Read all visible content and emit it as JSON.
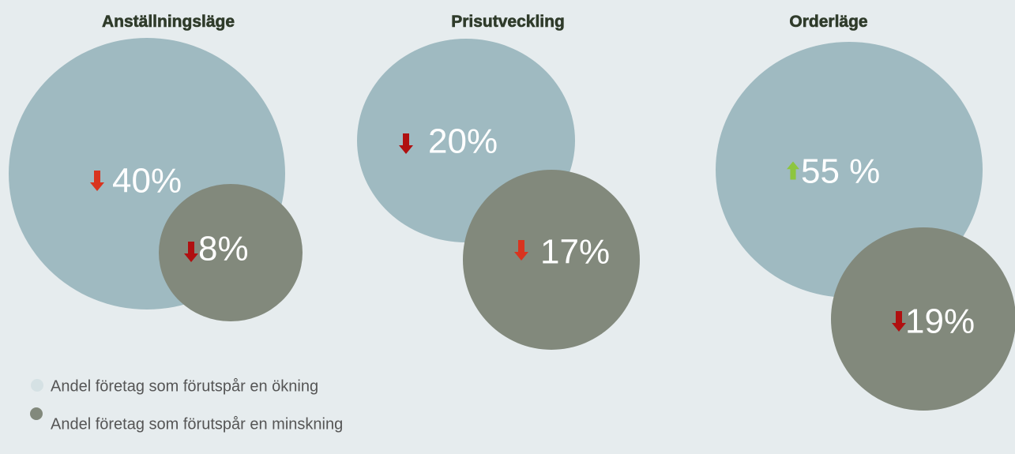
{
  "panels": [
    {
      "title": "Anställningsläge",
      "increase": "40%",
      "decrease": "8%"
    },
    {
      "title": "Prisutveckling",
      "increase": "20%",
      "decrease": "17%"
    },
    {
      "title": "Orderläge",
      "increase": "55 %",
      "decrease": "19%"
    }
  ],
  "legend": [
    "Andel företag som förutspår en ökning",
    "Andel företag som förutspår en minskning"
  ]
}
